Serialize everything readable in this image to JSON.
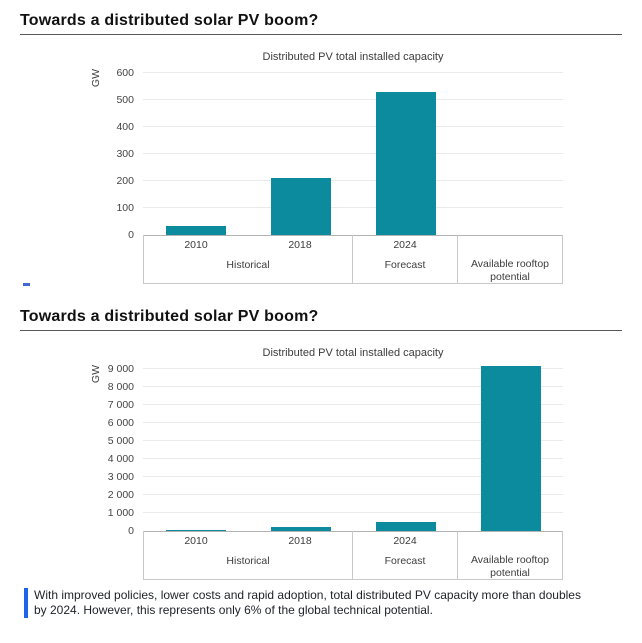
{
  "page": {
    "background": "#ffffff",
    "bar_color": "#0c8a9e",
    "rule_color": "#595959",
    "note_bar_color": "#1c64e8",
    "dash_color": "#4169d0"
  },
  "sections": [
    {
      "title": "Towards a distributed solar PV boom?"
    },
    {
      "title": "Towards a distributed solar PV boom?"
    }
  ],
  "note": {
    "text": "With improved policies, lower costs and rapid adoption, total distributed PV capacity more than doubles by 2024. However, this represents only 6% of the global technical potential."
  },
  "chart_data": [
    {
      "type": "bar",
      "title": "Distributed PV total installed capacity",
      "ylabel": "GW",
      "categories": [
        "2010",
        "2018",
        "2024",
        "Available rooftop potential"
      ],
      "values": [
        35,
        210,
        530,
        null
      ],
      "groups": [
        {
          "label": "Historical",
          "columns": [
            "2010",
            "2018"
          ]
        },
        {
          "label": "Forecast",
          "columns": [
            "2024"
          ]
        },
        {
          "label": "Available rooftop potential",
          "columns": [
            ""
          ]
        }
      ],
      "ylim": [
        0,
        600
      ],
      "ytick_values": [
        0,
        100,
        200,
        300,
        400,
        500,
        600
      ],
      "ytick_labels": [
        "0",
        "100",
        "200",
        "300",
        "400",
        "500",
        "600"
      ],
      "bar_color": "#0c8a9e",
      "grid": true,
      "legend": "none",
      "note": "Available rooftop potential bar exceeds axis range and is not visible at this scale"
    },
    {
      "type": "bar",
      "title": "Distributed PV total installed capacity",
      "ylabel": "GW",
      "categories": [
        "2010",
        "2018",
        "2024",
        "Available rooftop potential"
      ],
      "values": [
        35,
        210,
        530,
        9200
      ],
      "groups": [
        {
          "label": "Historical",
          "columns": [
            "2010",
            "2018"
          ]
        },
        {
          "label": "Forecast",
          "columns": [
            "2024"
          ]
        },
        {
          "label": "Available rooftop potential",
          "columns": [
            ""
          ]
        }
      ],
      "ylim": [
        0,
        9000
      ],
      "ytick_values": [
        0,
        1000,
        2000,
        3000,
        4000,
        5000,
        6000,
        7000,
        8000,
        9000
      ],
      "ytick_labels": [
        "0",
        "1 000",
        "2 000",
        "3 000",
        "4 000",
        "5 000",
        "6 000",
        "7 000",
        "8 000",
        "9 000"
      ],
      "bar_color": "#0c8a9e",
      "grid": true,
      "legend": "none"
    }
  ]
}
